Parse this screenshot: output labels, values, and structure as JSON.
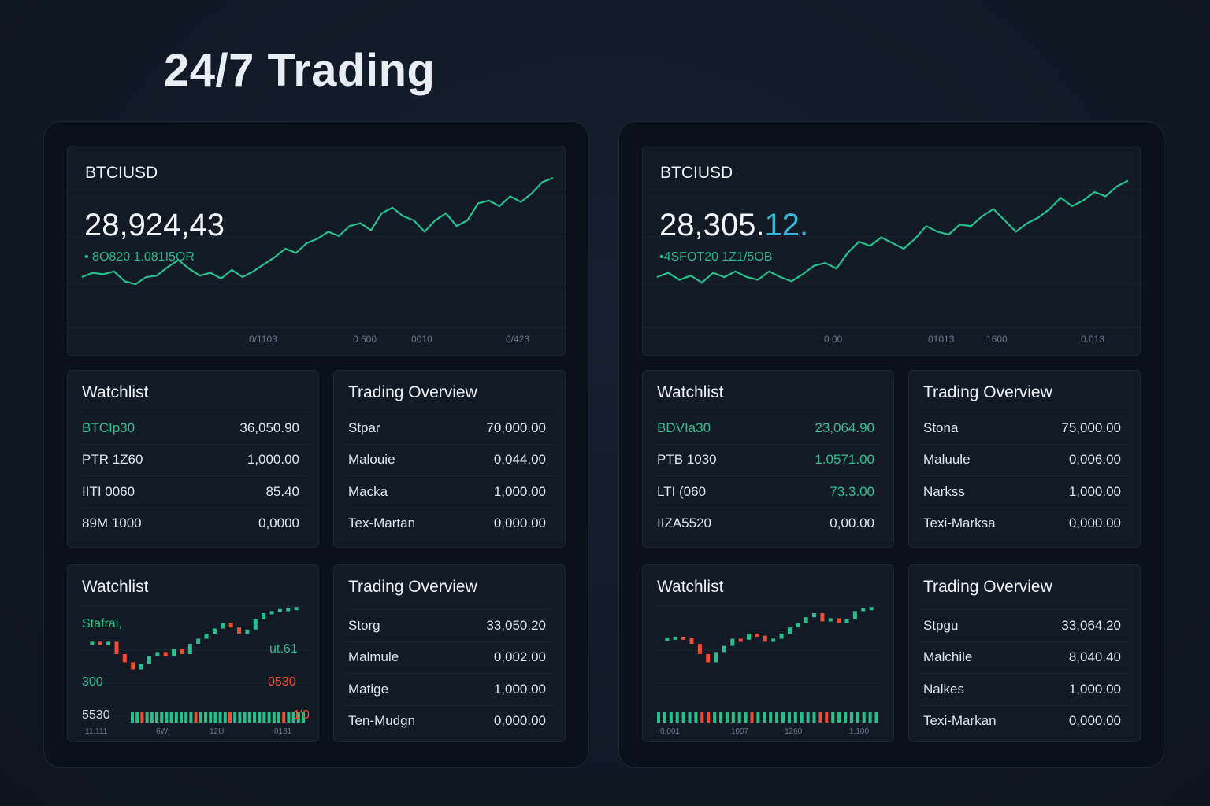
{
  "title": "24/7 Trading",
  "colors": {
    "up": "#28c08a",
    "down": "#ef4c32",
    "background": "#101824",
    "accent": "#38b8d8"
  },
  "panels": [
    {
      "symbol": "BTCIUSD",
      "price_main": "28,924,43",
      "price_accent": "",
      "change": "• 8O820 1.081I5OR",
      "x_ticks": [
        "0/1103",
        "0.600",
        "0010",
        "0/423"
      ],
      "line": [
        30,
        33,
        32,
        34,
        27,
        25,
        30,
        31,
        37,
        42,
        36,
        31,
        33,
        29,
        35,
        30,
        34,
        39,
        44,
        50,
        47,
        54,
        57,
        62,
        59,
        66,
        68,
        63,
        75,
        79,
        73,
        70,
        62,
        70,
        75,
        66,
        70,
        82,
        84,
        80,
        87,
        83,
        89,
        97,
        100
      ],
      "watchlist": {
        "title": "Watchlist",
        "rows": [
          {
            "label": "BTCIp30",
            "value": "36,050.90",
            "green_label": true,
            "green_value": false
          },
          {
            "label": "PTR 1Z60",
            "value": "1,000.00",
            "green_label": false,
            "green_value": false
          },
          {
            "label": "IITI 0060",
            "value": "85.40",
            "green_label": false,
            "green_value": false
          },
          {
            "label": "89M 1000",
            "value": "0,0000",
            "green_label": false,
            "green_value": false
          }
        ]
      },
      "overview": {
        "title": "Trading Overview",
        "rows": [
          {
            "label": "Stpar",
            "value": "70,000.00"
          },
          {
            "label": "Malouie",
            "value": "0,044.00"
          },
          {
            "label": "Macka",
            "value": "1,000.00"
          },
          {
            "label": "Tex-Martan",
            "value": "0,000.00"
          }
        ]
      },
      "candle_card": {
        "title": "Watchlist",
        "labels": {
          "top_left": "Stafrai,",
          "mid_left": "300",
          "bottom_left": "5530",
          "mid_right_up": "ut.61",
          "mid_right_down": "0530",
          "bottom_right": "1'0"
        },
        "candles": [
          50,
          52,
          51,
          52,
          40,
          32,
          25,
          30,
          38,
          42,
          38,
          45,
          40,
          50,
          55,
          60,
          65,
          70,
          66,
          60,
          64,
          74,
          80,
          82,
          84,
          85,
          86
        ],
        "volume_down": [
          2,
          13,
          20,
          31
        ],
        "x_ticks": [
          "11.111",
          "6W",
          "12U",
          "0131"
        ]
      },
      "overview2": {
        "title": "Trading Overview",
        "rows": [
          {
            "label": "Storg",
            "value": "33,050.20"
          },
          {
            "label": "Malmule",
            "value": "0,002.00"
          },
          {
            "label": "Matige",
            "value": "1,000.00"
          },
          {
            "label": "Ten-Mudgn",
            "value": "0,000.00"
          }
        ]
      }
    },
    {
      "symbol": "BTCIUSD",
      "price_main": "28,305.",
      "price_accent": "12.",
      "change": "•4SFOT20 1Z1/5OB",
      "x_ticks": [
        "0.00",
        "01013",
        "1600",
        "0.013"
      ],
      "line": [
        30,
        33,
        28,
        31,
        26,
        33,
        30,
        34,
        30,
        28,
        34,
        30,
        27,
        32,
        38,
        40,
        36,
        47,
        55,
        52,
        58,
        54,
        50,
        57,
        66,
        62,
        60,
        67,
        66,
        73,
        78,
        70,
        62,
        68,
        72,
        78,
        86,
        80,
        84,
        90,
        87,
        94,
        98
      ],
      "watchlist": {
        "title": "Watchlist",
        "rows": [
          {
            "label": "BDVIa30",
            "value": "23,064.90",
            "green_label": true,
            "green_value": true
          },
          {
            "label": "PTB 1030",
            "value": "1.0571.00",
            "green_label": false,
            "green_value": true
          },
          {
            "label": "LTI (060",
            "value": "73.3.00",
            "green_label": false,
            "green_value": true
          },
          {
            "label": "IIZA5520",
            "value": "0,00.00",
            "green_label": false,
            "green_value": false
          }
        ]
      },
      "overview": {
        "title": "Trading Overview",
        "rows": [
          {
            "label": "Stona",
            "value": "75,000.00"
          },
          {
            "label": "Maluule",
            "value": "0,006.00"
          },
          {
            "label": "Narkss",
            "value": "1,000.00"
          },
          {
            "label": "Texi-Marksa",
            "value": "0,000.00"
          }
        ]
      },
      "candle_card": {
        "title": "Watchlist",
        "labels": {},
        "candles": [
          55,
          56,
          57,
          56,
          50,
          40,
          32,
          42,
          48,
          55,
          54,
          60,
          58,
          52,
          55,
          60,
          66,
          70,
          76,
          80,
          72,
          75,
          70,
          74,
          82,
          85,
          86
        ],
        "volume_down": [
          7,
          8,
          15,
          26,
          27
        ],
        "x_ticks": [
          "0.001",
          "1007",
          "1260",
          "1.100"
        ]
      },
      "overview2": {
        "title": "Trading Overview",
        "rows": [
          {
            "label": "Stpgu",
            "value": "33,064.20"
          },
          {
            "label": "Malchile",
            "value": "8,040.40"
          },
          {
            "label": "Nalkes",
            "value": "1,000.00"
          },
          {
            "label": "Texi-Markan",
            "value": "0,000.00"
          }
        ]
      }
    }
  ]
}
